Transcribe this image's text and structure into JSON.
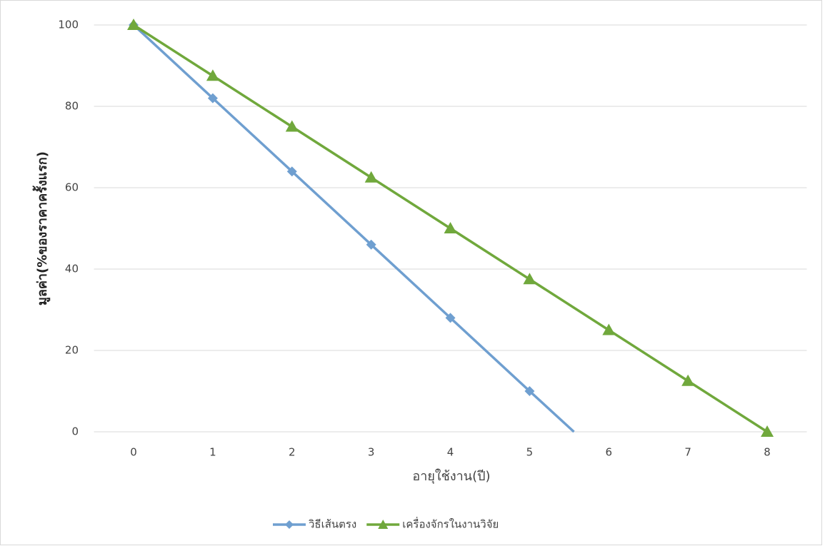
{
  "chart_data": {
    "type": "line",
    "x_label": "อายุใช้งาน(ปี)",
    "y_label": "มูลค่า(%ของราคาครั้งแรก)",
    "xlim": [
      -0.5,
      8.5
    ],
    "xticks": [
      0,
      1,
      2,
      3,
      4,
      5,
      6,
      7,
      8
    ],
    "ylim": [
      0,
      100
    ],
    "yticks": [
      0,
      20,
      40,
      60,
      80,
      100
    ],
    "grid": true,
    "legend": "bottom",
    "series": [
      {
        "name": "วิธีเส้นตรง",
        "color": "#6f9fd0",
        "marker": "diamond",
        "x": [
          0,
          1,
          2,
          3,
          4,
          5,
          5.56
        ],
        "values": [
          100,
          82,
          64,
          46,
          28,
          10,
          0
        ]
      },
      {
        "name": "เครื่องจักรในงานวิจัย",
        "color": "#70a83c",
        "marker": "triangle",
        "x": [
          0,
          1,
          2,
          3,
          4,
          5,
          6,
          7,
          8
        ],
        "values": [
          100,
          87.5,
          75,
          62.5,
          50,
          37.5,
          25,
          12.5,
          0
        ]
      }
    ]
  }
}
